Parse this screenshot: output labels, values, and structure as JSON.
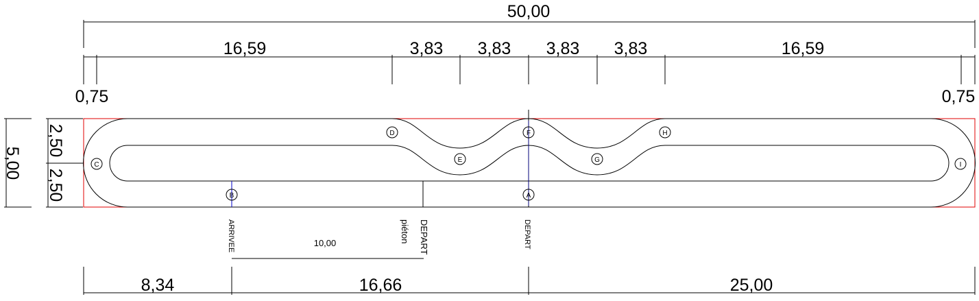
{
  "dimensions": {
    "overall_length": "50,00",
    "segments_top": [
      "16,59",
      "3,83",
      "3,83",
      "3,83",
      "3,83",
      "16,59"
    ],
    "end_margin_left": "0,75",
    "end_margin_right": "0,75",
    "overall_width": "5,00",
    "half_width_top": "2,50",
    "half_width_bottom": "2,50",
    "bottom_segments": [
      "8,34",
      "16,66",
      "25,00"
    ],
    "pedestrian_gap": "10,00"
  },
  "markers": [
    "A",
    "B",
    "C",
    "D",
    "E",
    "F",
    "G",
    "H",
    "I"
  ],
  "labels": {
    "finish": "ARRIVEE",
    "start_pedestrian_line1": "DEPART",
    "start_pedestrian_line2": "piéton",
    "start": "DEPART"
  },
  "colors": {
    "boundary": "#e00000",
    "finish_line": "#0000c8",
    "lines": "#000000"
  }
}
